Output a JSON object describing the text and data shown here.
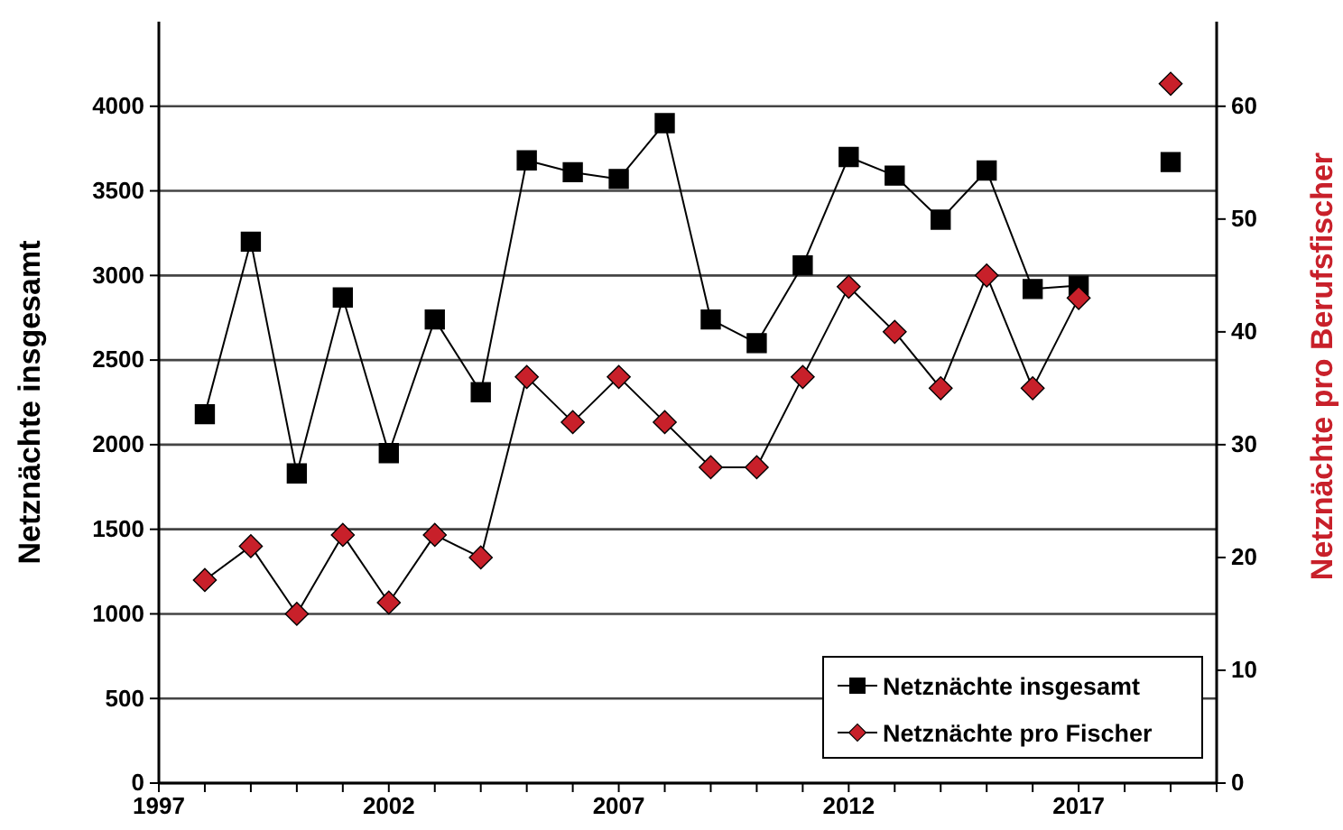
{
  "chart_data": {
    "type": "line",
    "ylabel": "Netznächte insgesamt",
    "y2label": "Netznächte pro Berufsfischer",
    "x": [
      1998,
      1999,
      2000,
      2001,
      2002,
      2003,
      2004,
      2005,
      2006,
      2007,
      2008,
      2009,
      2010,
      2011,
      2012,
      2013,
      2014,
      2015,
      2016,
      2017,
      2018,
      2019
    ],
    "series": [
      {
        "name": "Netznächte insgesamt",
        "color": "#000000",
        "marker": "square",
        "values": [
          2180,
          3200,
          1830,
          2870,
          1950,
          2740,
          2310,
          3680,
          3610,
          3570,
          3900,
          2740,
          2600,
          3060,
          3700,
          3590,
          3330,
          3620,
          2920,
          2940,
          null,
          3670
        ]
      },
      {
        "name": "Netznächte pro Fischer",
        "color": "#c8202a",
        "marker": "diamond",
        "axis": "y2",
        "values": [
          18,
          21,
          15,
          22,
          16,
          22,
          20,
          36,
          32,
          36,
          32,
          28,
          28,
          36,
          44,
          40,
          35,
          45,
          35,
          43,
          null,
          62
        ]
      }
    ],
    "xlim": [
      1997,
      2020
    ],
    "xticks": [
      1997,
      {
        "value": 1998,
        "label": null
      },
      {
        "value": 1999,
        "label": null
      },
      {
        "value": 2000,
        "label": null
      },
      {
        "value": 2001,
        "label": null
      },
      2002,
      {
        "value": 2003,
        "label": null
      },
      {
        "value": 2004,
        "label": null
      },
      {
        "value": 2005,
        "label": null
      },
      {
        "value": 2006,
        "label": null
      },
      2007,
      {
        "value": 2008,
        "label": null
      },
      {
        "value": 2009,
        "label": null
      },
      {
        "value": 2010,
        "label": null
      },
      {
        "value": 2011,
        "label": null
      },
      2012,
      {
        "value": 2013,
        "label": null
      },
      {
        "value": 2014,
        "label": null
      },
      {
        "value": 2015,
        "label": null
      },
      {
        "value": 2016,
        "label": null
      },
      2017,
      {
        "value": 2018,
        "label": null
      },
      {
        "value": 2019,
        "label": null
      },
      {
        "value": 2020,
        "label": null
      }
    ],
    "ylim": [
      0,
      4500
    ],
    "yticks": [
      0,
      500,
      1000,
      1500,
      2000,
      2500,
      3000,
      3500,
      4000
    ],
    "y2lim": [
      0,
      67.5
    ],
    "y2ticks": [
      0,
      10,
      20,
      30,
      40,
      50,
      60
    ],
    "grid": "y",
    "legend": "bottom right",
    "line_style": "solid"
  }
}
